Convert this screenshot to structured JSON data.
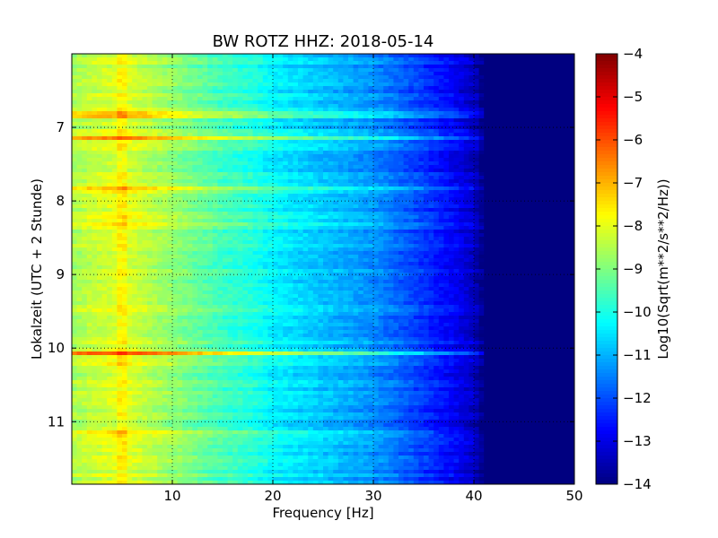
{
  "chart_data": {
    "type": "heatmap",
    "title": "BW ROTZ HHZ: 2018-05-14",
    "xlabel": "Frequency [Hz]",
    "ylabel": "Lokalzeit (UTC + 2 Stunde)",
    "colorbar_label": "Log10(Sqrt(m**2/s**2/Hz))",
    "xlim": [
      0,
      50
    ],
    "ylim": [
      11.85,
      6.0
    ],
    "x_ticks": [
      10,
      20,
      30,
      40,
      50
    ],
    "y_ticks": [
      7,
      8,
      9,
      10,
      11
    ],
    "color_range": [
      -14,
      -4
    ],
    "colorbar_ticks": [
      -4,
      -5,
      -6,
      -7,
      -8,
      -9,
      -10,
      -11,
      -12,
      -13,
      -14
    ],
    "colormap": "jet",
    "grid": true,
    "frequency_profile": {
      "x": [
        0,
        2,
        5,
        10,
        15,
        18,
        20,
        25,
        30,
        35,
        38,
        40,
        41,
        50
      ],
      "values": [
        -8.6,
        -8.3,
        -8.0,
        -8.8,
        -9.6,
        -9.9,
        -10.3,
        -10.8,
        -11.3,
        -12.2,
        -12.8,
        -13.3,
        -14.0,
        -14.0
      ]
    },
    "time_bands": [
      {
        "t": 6.83,
        "delta": 1.6,
        "fmax": 43
      },
      {
        "t": 7.15,
        "delta": 1.4,
        "fmax": 42
      },
      {
        "t": 7.85,
        "delta": 1.7,
        "fmax": 44
      },
      {
        "t": 8.2,
        "delta": 0.7,
        "fmax": 41
      },
      {
        "t": 8.3,
        "delta": 0.6,
        "fmax": 41
      },
      {
        "t": 10.08,
        "delta": 2.4,
        "fmax": 44
      },
      {
        "t": 10.22,
        "delta": 0.6,
        "fmax": 41
      },
      {
        "t": 11.15,
        "delta": 0.6,
        "fmax": 36
      }
    ]
  }
}
